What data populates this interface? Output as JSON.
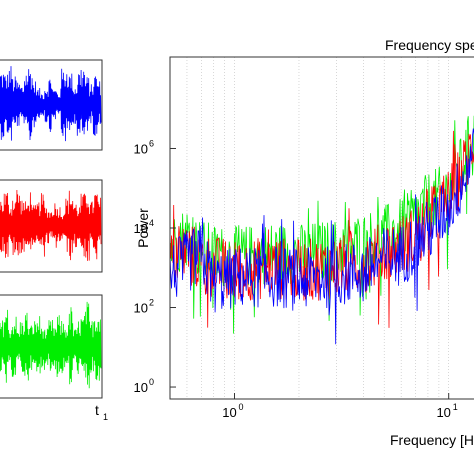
{
  "chart_data": [
    {
      "type": "line",
      "panel": "time-series-blue",
      "color": "#0000ff",
      "description_visible": "noise-like time series trace, no y tick labels shown",
      "xlabel": "",
      "ylabel": "",
      "x_tick_labels": [],
      "series": [
        {
          "color": "#0000ff",
          "envelope": [
            0.9,
            0.8,
            1.0,
            0.7,
            0.6,
            0.5,
            0.9,
            1.0,
            0.6,
            0.4,
            0.3,
            0.5,
            0.7,
            0.4,
            0.3,
            0.9,
            1.0,
            0.8,
            0.5,
            0.9,
            1.0,
            0.7,
            0.5,
            0.8,
            0.6
          ]
        }
      ]
    },
    {
      "type": "line",
      "panel": "time-series-red",
      "color": "#ff0000",
      "xlabel": "",
      "ylabel": "",
      "x_tick_labels": [],
      "series": [
        {
          "color": "#ff0000",
          "envelope": [
            0.7,
            0.9,
            0.6,
            0.8,
            1.0,
            0.7,
            0.6,
            0.9,
            0.5,
            0.6,
            0.8,
            0.5,
            0.4,
            0.6,
            0.5,
            0.4,
            0.7,
            0.9,
            0.6,
            0.5,
            0.8,
            1.0,
            0.6,
            0.9,
            0.7
          ]
        }
      ]
    },
    {
      "type": "line",
      "panel": "time-series-green",
      "color": "#00ee00",
      "xlabel": "",
      "ylabel": "",
      "x_tick_labels": [
        "t",
        "1"
      ],
      "series": [
        {
          "color": "#00ee00",
          "envelope": [
            0.6,
            0.9,
            0.5,
            0.7,
            0.4,
            0.6,
            0.8,
            0.5,
            0.6,
            0.7,
            0.5,
            0.4,
            0.6,
            0.5,
            0.7,
            0.6,
            0.5,
            0.9,
            0.4,
            0.6,
            0.7,
            1.0,
            0.6,
            0.8,
            0.9
          ]
        }
      ]
    },
    {
      "type": "line",
      "panel": "power-spectrum",
      "title": "Frequency spe",
      "xlabel": "Frequency [H",
      "ylabel": "Power",
      "xscale": "log",
      "yscale": "log",
      "xlim": [
        0.5,
        14
      ],
      "ylim": [
        0.5,
        200000000
      ],
      "x_ticks": [
        {
          "value": 1,
          "base": "10",
          "exp": "0"
        },
        {
          "value": 10,
          "base": "10",
          "exp": "1"
        }
      ],
      "y_ticks": [
        {
          "value": 1,
          "base": "10",
          "exp": "0"
        },
        {
          "value": 100,
          "base": "10",
          "exp": "2"
        },
        {
          "value": 10000,
          "base": "10",
          "exp": "4"
        },
        {
          "value": 1000000,
          "base": "10",
          "exp": "6"
        }
      ],
      "grid": "vertical dotted at decade subdivisions",
      "series": [
        {
          "color": "#00ee00",
          "x": [
            0.5,
            0.6,
            0.7,
            0.8,
            1.0,
            1.5,
            2.0,
            3.0,
            4.0,
            5.0,
            6.0,
            7.0,
            8.0,
            9.0,
            10.0,
            11.0,
            12.0,
            13.0,
            14.0
          ],
          "y": [
            5000,
            9000,
            4000,
            3000,
            2500,
            3500,
            3000,
            4000,
            6000,
            9000,
            13000,
            25000,
            60000,
            80000,
            120000,
            300000,
            1000000,
            4000000,
            3000000
          ]
        },
        {
          "color": "#ff0000",
          "x": [
            0.5,
            0.6,
            0.7,
            0.8,
            1.0,
            1.5,
            2.0,
            3.0,
            4.0,
            5.0,
            6.0,
            7.0,
            8.0,
            9.0,
            10.0,
            11.0,
            12.0,
            13.0,
            14.0
          ],
          "y": [
            2000,
            4000,
            2000,
            1500,
            1200,
            1500,
            1200,
            1500,
            2000,
            3500,
            5000,
            9000,
            20000,
            40000,
            80000,
            200000,
            600000,
            2000000,
            1500000
          ]
        },
        {
          "color": "#0000ff",
          "x": [
            0.5,
            0.6,
            0.7,
            0.8,
            1.0,
            1.5,
            2.0,
            3.0,
            4.0,
            5.0,
            6.0,
            7.0,
            8.0,
            9.0,
            10.0,
            11.0,
            12.0,
            13.0,
            14.0
          ],
          "y": [
            1000,
            2000,
            3000,
            600,
            800,
            900,
            700,
            900,
            1200,
            2500,
            3000,
            6000,
            12000,
            25000,
            50000,
            120000,
            400000,
            1500000,
            6000000
          ]
        }
      ]
    }
  ]
}
